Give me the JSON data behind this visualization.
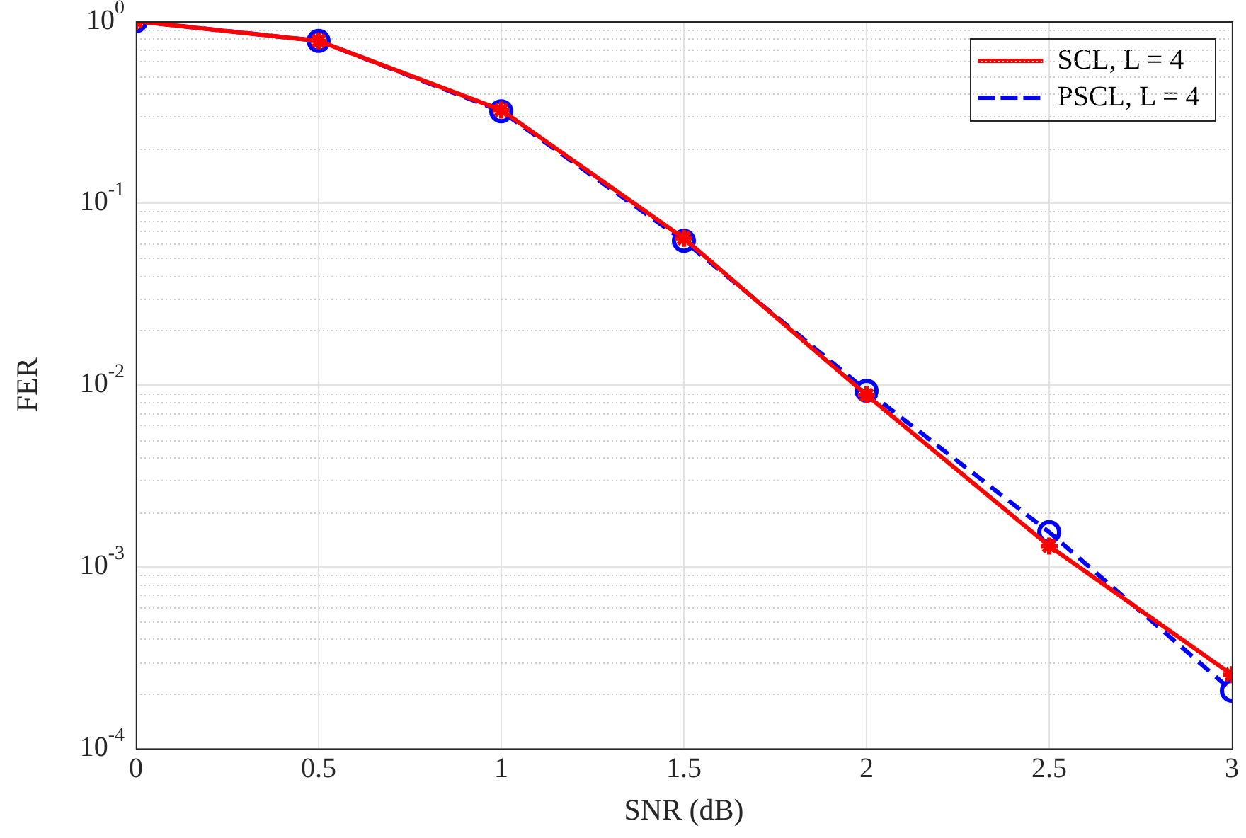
{
  "chart_data": {
    "type": "line",
    "xlabel": "SNR (dB)",
    "ylabel": "FER",
    "log": "y",
    "grid": true,
    "legend": "top right",
    "x": [
      0,
      0.5,
      1,
      1.5,
      2,
      2.5,
      3
    ],
    "xlim": [
      0,
      3
    ],
    "xticks": [
      0,
      0.5,
      1,
      1.5,
      2,
      2.5,
      3
    ],
    "ylim": [
      0.0001,
      1
    ],
    "yticks": [
      {
        "value": 1,
        "label": "10$^{0}$"
      },
      {
        "value": 0.1,
        "label": "10$^{-1}$"
      },
      {
        "value": 0.01,
        "label": "10$^{-2}$"
      },
      {
        "value": 0.001,
        "label": "10$^{-3}$"
      },
      {
        "value": 0.0001,
        "label": "10$^{-4}$"
      }
    ],
    "series": [
      {
        "name": "SCL, L = 4",
        "color": "#ff0000",
        "marker": "cross",
        "line_style": "solid",
        "values": [
          1.0,
          0.78,
          0.325,
          0.064,
          0.0088,
          0.0013,
          0.000255
        ]
      },
      {
        "name": "PSCL, L = 4",
        "color": "#0000ff",
        "marker": "circle",
        "line_style": "dashed",
        "values": [
          1.0,
          0.78,
          0.32,
          0.062,
          0.0093,
          0.00155,
          0.000208
        ]
      }
    ]
  }
}
